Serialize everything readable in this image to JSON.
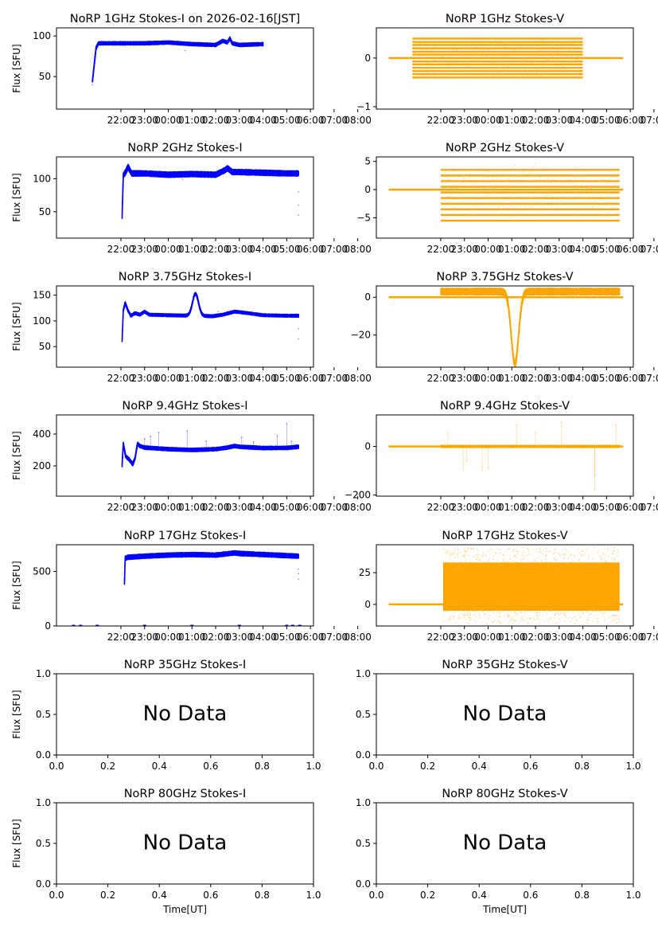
{
  "figure": {
    "time_ticks": [
      "22:00",
      "23:00",
      "00:00",
      "01:00",
      "02:00",
      "03:00",
      "04:00",
      "05:00",
      "06:00",
      "07:00",
      "08:00"
    ],
    "time_range_hours": [
      -2.72,
      8.13
    ],
    "nodata_ticks": [
      "0.0",
      "0.2",
      "0.4",
      "0.6",
      "0.8",
      "1.0"
    ],
    "ylabel": "Flux [SFU]",
    "xlabel": "Time[UT]",
    "nodata_text": "No Data",
    "colors": {
      "stokes_i": "#0000ff",
      "stokes_v": "#ffa500"
    }
  },
  "chart_data": [
    {
      "id": "1ghz-i",
      "type": "scatter",
      "title": "NoRP 1GHz Stokes-I on 2026-02-16[JST]",
      "stokes": "I",
      "ylim": [
        10,
        110
      ],
      "yticks": [
        50,
        100
      ],
      "has_data": true,
      "start": -1.2,
      "end": 6.0,
      "profile": [
        [
          -1.2,
          45
        ],
        [
          -1.05,
          85
        ],
        [
          -0.95,
          91
        ],
        [
          0,
          91
        ],
        [
          1,
          91
        ],
        [
          2,
          92
        ],
        [
          3,
          90
        ],
        [
          4,
          89
        ],
        [
          4.3,
          94
        ],
        [
          4.5,
          92
        ],
        [
          4.6,
          97
        ],
        [
          4.7,
          91
        ],
        [
          5,
          89
        ],
        [
          6,
          90
        ]
      ],
      "noise": 1.5,
      "outliers": [
        [
          2.7,
          82
        ],
        [
          -1.2,
          40
        ]
      ]
    },
    {
      "id": "1ghz-v",
      "type": "scatter",
      "title": "NoRP 1GHz Stokes-V",
      "stokes": "V",
      "ylim": [
        -1.05,
        0.62
      ],
      "yticks": [
        -1,
        0
      ],
      "has_data": true,
      "start": -1.2,
      "end": 6.0,
      "zero_line": [
        -2.2,
        7.7
      ],
      "levels": [
        -0.4,
        -0.33,
        -0.27,
        -0.2,
        -0.13,
        -0.07,
        0,
        0.07,
        0.13,
        0.2,
        0.27,
        0.33,
        0.4
      ],
      "sparse_spread": 0.6
    },
    {
      "id": "2ghz-i",
      "type": "scatter",
      "title": "NoRP 2GHz Stokes-I",
      "stokes": "I",
      "ylim": [
        10,
        133
      ],
      "yticks": [
        50,
        100
      ],
      "has_data": true,
      "start": 0.05,
      "end": 7.5,
      "profile": [
        [
          0.05,
          42
        ],
        [
          0.1,
          105
        ],
        [
          0.2,
          110
        ],
        [
          0.3,
          118
        ],
        [
          0.45,
          108
        ],
        [
          1,
          108
        ],
        [
          2,
          106
        ],
        [
          3,
          107
        ],
        [
          4,
          106
        ],
        [
          4.4,
          113
        ],
        [
          4.5,
          116
        ],
        [
          4.7,
          110
        ],
        [
          5,
          110
        ],
        [
          6,
          109
        ],
        [
          7,
          108
        ],
        [
          7.5,
          108
        ]
      ],
      "noise": 3,
      "outliers": [
        [
          7.5,
          45
        ],
        [
          7.5,
          60
        ],
        [
          7.5,
          80
        ],
        [
          2.6,
          99
        ]
      ]
    },
    {
      "id": "2ghz-v",
      "type": "scatter",
      "title": "NoRP 2GHz Stokes-V",
      "stokes": "V",
      "ylim": [
        -8.6,
        5.8
      ],
      "yticks": [
        -5,
        0,
        5
      ],
      "has_data": true,
      "start": 0.0,
      "end": 7.55,
      "zero_line": [
        -2.2,
        7.7
      ],
      "levels": [
        -5.5,
        -4.5,
        -3.5,
        -2.5,
        -1.5,
        -0.5,
        0.5,
        1.5,
        2.5,
        3.5
      ],
      "sparse_spread": 7
    },
    {
      "id": "375ghz-i",
      "type": "scatter",
      "title": "NoRP 3.75GHz Stokes-I",
      "stokes": "I",
      "ylim": [
        10,
        168
      ],
      "yticks": [
        50,
        100,
        150
      ],
      "has_data": true,
      "start": 0.05,
      "end": 7.5,
      "profile": [
        [
          0.05,
          62
        ],
        [
          0.1,
          120
        ],
        [
          0.18,
          135
        ],
        [
          0.3,
          120
        ],
        [
          0.42,
          110
        ],
        [
          0.6,
          115
        ],
        [
          0.8,
          112
        ],
        [
          1.0,
          118
        ],
        [
          1.2,
          112
        ],
        [
          2,
          111
        ],
        [
          3,
          110
        ],
        [
          3.1,
          111
        ],
        [
          3.2,
          110
        ],
        [
          3.9,
          109
        ],
        [
          4,
          110
        ],
        [
          4.3,
          112
        ],
        [
          4.8,
          118
        ],
        [
          5.2,
          116
        ],
        [
          6,
          111
        ],
        [
          7,
          110
        ],
        [
          7.5,
          110
        ]
      ],
      "extra_peak": {
        "center": 3.15,
        "width": 0.45,
        "height": 42,
        "clip": [
          2.5,
          3.8
        ]
      },
      "noise": 2,
      "outliers": [
        [
          7.5,
          65
        ],
        [
          7.5,
          85
        ],
        [
          4.1,
          118
        ]
      ]
    },
    {
      "id": "375ghz-v",
      "type": "scatter",
      "title": "NoRP 3.75GHz Stokes-V",
      "stokes": "V",
      "ylim": [
        -37,
        6
      ],
      "yticks": [
        -20,
        0
      ],
      "has_data": true,
      "start": 0.0,
      "end": 7.55,
      "zero_line": [
        -2.2,
        7.7
      ],
      "profile": [
        [
          0,
          3
        ],
        [
          2,
          3
        ],
        [
          4,
          3
        ],
        [
          6,
          3
        ],
        [
          7.55,
          3
        ]
      ],
      "dip": {
        "center": 3.13,
        "width": 0.22,
        "depth": -38
      },
      "noise": 1.3
    },
    {
      "id": "94ghz-i",
      "type": "scatter",
      "title": "NoRP 9.4GHz Stokes-I",
      "stokes": "I",
      "ylim": [
        10,
        520
      ],
      "yticks": [
        200,
        400
      ],
      "has_data": true,
      "start": 0.05,
      "end": 7.5,
      "profile": [
        [
          0.05,
          205
        ],
        [
          0.1,
          340
        ],
        [
          0.2,
          260
        ],
        [
          0.35,
          240
        ],
        [
          0.5,
          210
        ],
        [
          0.6,
          250
        ],
        [
          0.7,
          340
        ],
        [
          0.8,
          325
        ],
        [
          1,
          315
        ],
        [
          2,
          305
        ],
        [
          3,
          300
        ],
        [
          4,
          305
        ],
        [
          4.5,
          315
        ],
        [
          4.8,
          325
        ],
        [
          5,
          320
        ],
        [
          6,
          312
        ],
        [
          7,
          313
        ],
        [
          7.5,
          320
        ]
      ],
      "noise": 8,
      "spikes": [
        [
          1.0,
          370
        ],
        [
          1.25,
          385
        ],
        [
          1.6,
          410
        ],
        [
          2.8,
          420
        ],
        [
          3.6,
          355
        ],
        [
          5.6,
          350
        ],
        [
          6.6,
          390
        ],
        [
          7.0,
          465
        ],
        [
          7.2,
          355
        ],
        [
          5.1,
          380
        ]
      ]
    },
    {
      "id": "94ghz-v",
      "type": "scatter",
      "title": "NoRP 9.4GHz Stokes-V",
      "stokes": "V",
      "ylim": [
        -205,
        130
      ],
      "yticks": [
        -200,
        0
      ],
      "has_data": true,
      "start": 0.0,
      "end": 7.55,
      "zero_line": [
        -2.2,
        7.7
      ],
      "profile": [
        [
          0,
          0
        ],
        [
          7.55,
          0
        ]
      ],
      "noise": 3,
      "spikes": [
        [
          0.3,
          60
        ],
        [
          0.95,
          -90
        ],
        [
          1.1,
          -60
        ],
        [
          1.75,
          -100
        ],
        [
          3.2,
          90
        ],
        [
          5.1,
          100
        ],
        [
          6.5,
          -180
        ],
        [
          6.5,
          -120
        ],
        [
          7.4,
          90
        ],
        [
          2.0,
          -90
        ],
        [
          4.0,
          60
        ]
      ]
    },
    {
      "id": "17ghz-i",
      "type": "scatter",
      "title": "NoRP 17GHz Stokes-I",
      "stokes": "I",
      "ylim": [
        0,
        745
      ],
      "yticks": [
        0,
        500
      ],
      "has_data": true,
      "start": 0.15,
      "end": 7.5,
      "profile": [
        [
          0.15,
          400
        ],
        [
          0.18,
          620
        ],
        [
          0.3,
          630
        ],
        [
          1,
          640
        ],
        [
          2,
          650
        ],
        [
          3,
          655
        ],
        [
          4,
          650
        ],
        [
          4.8,
          670
        ],
        [
          5,
          665
        ],
        [
          6,
          655
        ],
        [
          7,
          645
        ],
        [
          7.5,
          640
        ]
      ],
      "noise": 15,
      "outliers": [
        [
          7.5,
          430
        ],
        [
          7.5,
          480
        ],
        [
          7.5,
          520
        ]
      ],
      "zero_marks": [
        -2.0,
        -1.7,
        -1.0,
        1.0,
        3.0,
        5.0,
        7.0,
        7.25,
        7.55
      ]
    },
    {
      "id": "17ghz-v",
      "type": "scatter",
      "title": "NoRP 17GHz Stokes-V",
      "stokes": "V",
      "ylim": [
        -17,
        47
      ],
      "yticks": [
        0,
        25
      ],
      "has_data": true,
      "start": 0.1,
      "end": 7.55,
      "zero_line": [
        -2.2,
        7.7
      ],
      "band": [
        -5,
        33
      ],
      "sparse_spread": 48
    },
    {
      "id": "35ghz-i",
      "type": "empty",
      "title": "NoRP 35GHz Stokes-I",
      "stokes": "I",
      "ylim": [
        0,
        1
      ],
      "yticks": [
        "0.0",
        "0.5",
        "1.0"
      ],
      "has_data": false
    },
    {
      "id": "35ghz-v",
      "type": "empty",
      "title": "NoRP 35GHz Stokes-V",
      "stokes": "V",
      "ylim": [
        0,
        1
      ],
      "yticks": [
        "0.0",
        "0.5",
        "1.0"
      ],
      "has_data": false
    },
    {
      "id": "80ghz-i",
      "type": "empty",
      "title": "NoRP 80GHz Stokes-I",
      "stokes": "I",
      "ylim": [
        0,
        1
      ],
      "yticks": [
        "0.0",
        "0.5",
        "1.0"
      ],
      "has_data": false
    },
    {
      "id": "80ghz-v",
      "type": "empty",
      "title": "NoRP 80GHz Stokes-V",
      "stokes": "V",
      "ylim": [
        0,
        1
      ],
      "yticks": [
        "0.0",
        "0.5",
        "1.0"
      ],
      "has_data": false
    }
  ]
}
